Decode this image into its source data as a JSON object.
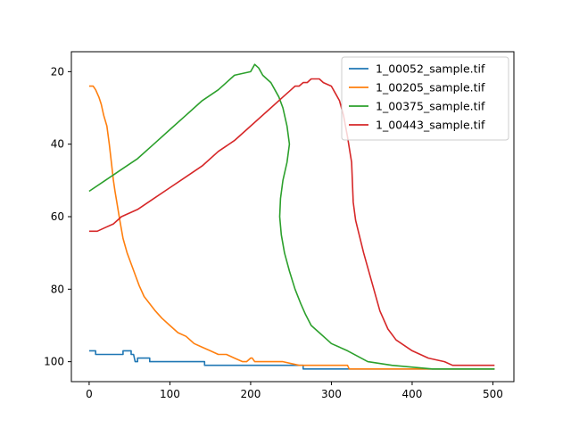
{
  "chart_data": {
    "type": "line",
    "title": "",
    "xlabel": "",
    "ylabel": "",
    "xlim": [
      -22,
      526
    ],
    "ylim": [
      105.5,
      14.5
    ],
    "y_inverted": true,
    "x_ticks": [
      0,
      100,
      200,
      300,
      400,
      500
    ],
    "y_ticks": [
      20,
      40,
      60,
      80,
      100
    ],
    "grid": false,
    "legend_position": "top-right",
    "series": [
      {
        "name": "1_00052_sample.tif",
        "color": "#1f77b4",
        "x": [
          0,
          8,
          8,
          42,
          42,
          52,
          52,
          55,
          57,
          60,
          60,
          75,
          75,
          143,
          143,
          265,
          265,
          330,
          330,
          502
        ],
        "y": [
          97,
          97,
          98,
          98,
          97,
          97,
          98,
          98,
          100,
          100,
          99,
          99,
          100,
          100,
          101,
          101,
          102,
          102,
          102,
          102
        ]
      },
      {
        "name": "1_00205_sample.tif",
        "color": "#ff7f0e",
        "x": [
          0,
          5,
          8,
          12,
          15,
          18,
          22,
          25,
          28,
          30,
          32,
          35,
          38,
          42,
          47,
          52,
          57,
          62,
          68,
          75,
          82,
          90,
          100,
          110,
          120,
          130,
          140,
          150,
          160,
          170,
          180,
          190,
          195,
          200,
          202,
          205,
          220,
          240,
          260,
          280,
          300,
          320,
          322,
          502
        ],
        "y": [
          24,
          24,
          25,
          27,
          29,
          32,
          35,
          40,
          46,
          50,
          53,
          57,
          61,
          66,
          70,
          73,
          76,
          79,
          82,
          84,
          86,
          88,
          90,
          92,
          93,
          95,
          96,
          97,
          98,
          98,
          99,
          100,
          100,
          99,
          99,
          100,
          100,
          100,
          101,
          101,
          101,
          101,
          102,
          102
        ]
      },
      {
        "name": "1_00375_sample.tif",
        "color": "#2ca02c",
        "x": [
          0,
          20,
          40,
          60,
          80,
          100,
          120,
          140,
          160,
          180,
          200,
          205,
          210,
          215,
          220,
          225,
          230,
          235,
          240,
          245,
          248,
          245,
          240,
          237,
          236,
          238,
          242,
          248,
          255,
          262,
          268,
          275,
          285,
          295,
          300,
          320,
          345,
          375,
          425,
          502
        ],
        "y": [
          53,
          50,
          47,
          44,
          40,
          36,
          32,
          28,
          25,
          21,
          20,
          18,
          19,
          21,
          22,
          23,
          25,
          27,
          30,
          35,
          40,
          45,
          50,
          55,
          60,
          65,
          70,
          75,
          80,
          84,
          87,
          90,
          92,
          94,
          95,
          97,
          100,
          101,
          102,
          102
        ]
      },
      {
        "name": "1_00443_sample.tif",
        "color": "#d62728",
        "x": [
          0,
          10,
          20,
          30,
          40,
          60,
          80,
          100,
          120,
          140,
          160,
          180,
          200,
          220,
          240,
          250,
          255,
          260,
          265,
          270,
          275,
          280,
          285,
          290,
          300,
          305,
          310,
          315,
          320,
          325,
          327,
          330,
          340,
          350,
          360,
          370,
          380,
          400,
          420,
          440,
          450,
          502
        ],
        "y": [
          64,
          64,
          63,
          62,
          60,
          58,
          55,
          52,
          49,
          46,
          42,
          39,
          35,
          31,
          27,
          25,
          24,
          24,
          23,
          23,
          22,
          22,
          22,
          23,
          24,
          26,
          28,
          32,
          38,
          45,
          56,
          61,
          70,
          78,
          86,
          91,
          94,
          97,
          99,
          100,
          101,
          101
        ]
      }
    ]
  }
}
